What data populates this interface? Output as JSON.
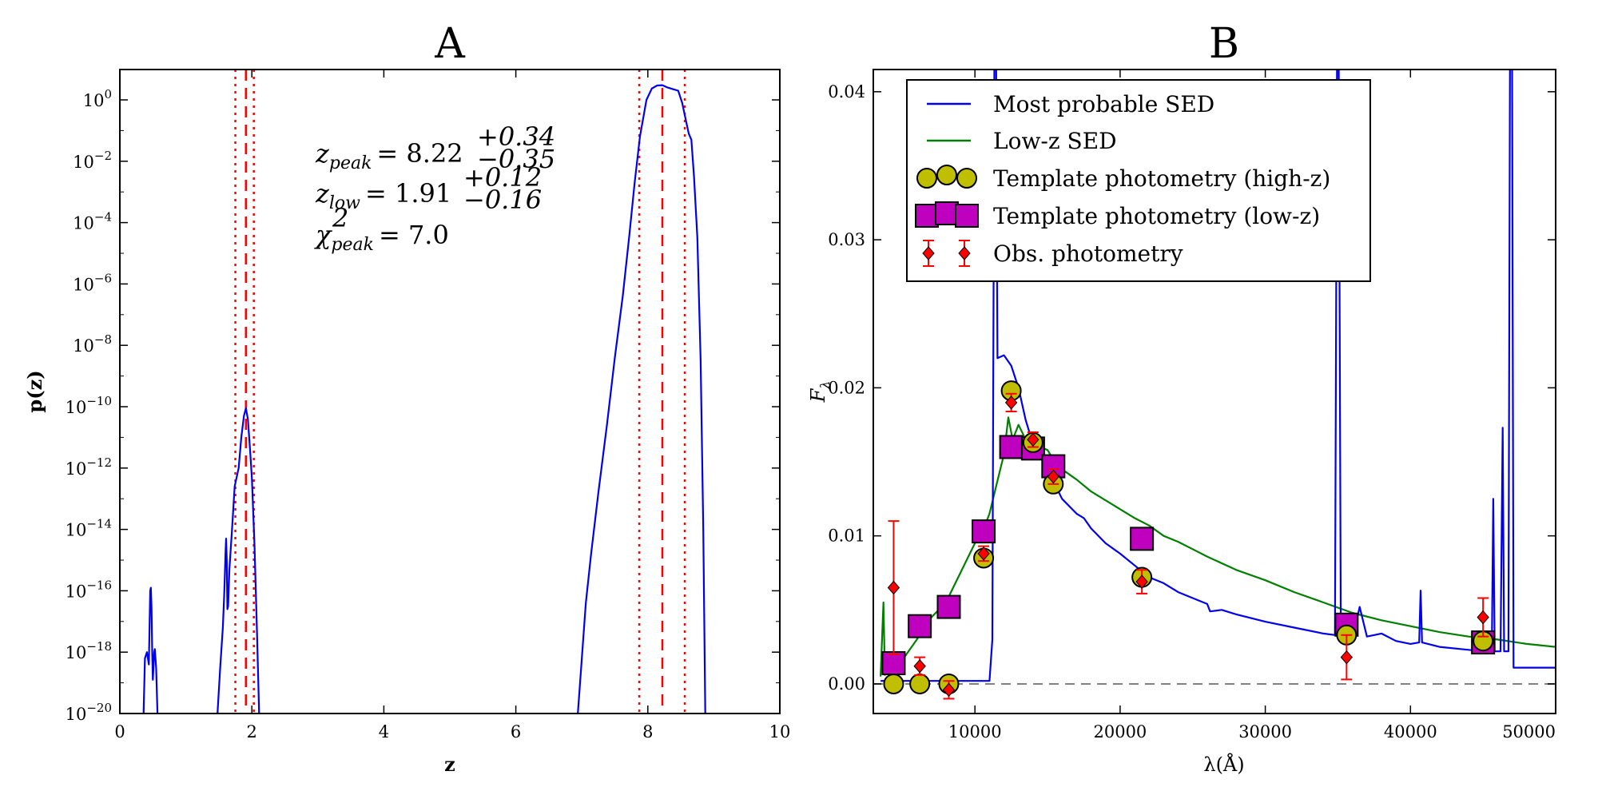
{
  "chart_data": [
    {
      "panel": "A",
      "type": "line",
      "title": "A",
      "xlabel": "z",
      "ylabel": "p(z)",
      "xlim": [
        0,
        10
      ],
      "ylim_log10": [
        -20,
        1
      ],
      "y_scale": "log",
      "x_ticks": [
        "0",
        "2",
        "4",
        "6",
        "8",
        "10"
      ],
      "y_ticks": [
        {
          "base": "10",
          "exp": "0"
        },
        {
          "base": "10",
          "exp": "−2"
        },
        {
          "base": "10",
          "exp": "−4"
        },
        {
          "base": "10",
          "exp": "−6"
        },
        {
          "base": "10",
          "exp": "−8"
        },
        {
          "base": "10",
          "exp": "−10"
        },
        {
          "base": "10",
          "exp": "−12"
        },
        {
          "base": "10",
          "exp": "−14"
        },
        {
          "base": "10",
          "exp": "−16"
        },
        {
          "base": "10",
          "exp": "−18"
        },
        {
          "base": "10",
          "exp": "−20"
        }
      ],
      "annotations": {
        "z_peak": {
          "lhs": "z",
          "sub": "peak",
          "value": "= 8.22",
          "sup": "+0.34",
          "inf": "−0.35"
        },
        "z_low": {
          "lhs": "z",
          "sub": "low",
          "value": "= 1.91",
          "sup": "+0.12",
          "inf": "−0.16"
        },
        "chi2": {
          "lhs": "χ",
          "sup": "2",
          "sub": "peak",
          "value": "= 7.0"
        }
      },
      "vlines": {
        "dashed": [
          1.91,
          8.22
        ],
        "dotted": [
          1.75,
          2.03,
          7.87,
          8.56
        ]
      },
      "series": [
        {
          "color": "#0000ee",
          "segments": [
            [
              [
                0.36,
                -20
              ],
              [
                0.38,
                -18.2
              ],
              [
                0.41,
                -18.0
              ],
              [
                0.44,
                -18.4
              ],
              [
                0.46,
                -16.0
              ],
              [
                0.47,
                -15.9
              ],
              [
                0.48,
                -16.5
              ],
              [
                0.49,
                -18.0
              ],
              [
                0.5,
                -18.9
              ],
              [
                0.52,
                -18.0
              ],
              [
                0.53,
                -17.9
              ],
              [
                0.55,
                -18.5
              ],
              [
                0.57,
                -20
              ]
            ],
            [
              [
                1.48,
                -20
              ],
              [
                1.52,
                -18.5
              ],
              [
                1.56,
                -17.2
              ],
              [
                1.58,
                -16.2
              ],
              [
                1.59,
                -15.6
              ],
              [
                1.6,
                -14.8
              ],
              [
                1.61,
                -14.3
              ],
              [
                1.62,
                -15.0
              ],
              [
                1.63,
                -16.6
              ],
              [
                1.64,
                -16.5
              ],
              [
                1.66,
                -15.3
              ],
              [
                1.7,
                -14.0
              ],
              [
                1.74,
                -12.6
              ],
              [
                1.8,
                -12.0
              ],
              [
                1.84,
                -11.0
              ],
              [
                1.88,
                -10.3
              ],
              [
                1.91,
                -10.05
              ],
              [
                1.94,
                -10.4
              ],
              [
                1.97,
                -11.3
              ],
              [
                2.0,
                -12.3
              ],
              [
                2.04,
                -14.5
              ],
              [
                2.08,
                -17.5
              ],
              [
                2.11,
                -20
              ]
            ],
            [
              [
                6.94,
                -20
              ],
              [
                7.0,
                -18.2
              ],
              [
                7.06,
                -16.4
              ],
              [
                7.14,
                -14.8
              ],
              [
                7.25,
                -12.8
              ],
              [
                7.38,
                -10.6
              ],
              [
                7.5,
                -8.4
              ],
              [
                7.62,
                -6.4
              ],
              [
                7.72,
                -4.4
              ],
              [
                7.8,
                -2.7
              ],
              [
                7.88,
                -1.2
              ],
              [
                7.98,
                0.0
              ],
              [
                8.06,
                0.37
              ],
              [
                8.14,
                0.47
              ],
              [
                8.22,
                0.48
              ],
              [
                8.3,
                0.4
              ],
              [
                8.38,
                0.35
              ],
              [
                8.46,
                0.3
              ],
              [
                8.52,
                -0.1
              ],
              [
                8.58,
                -0.7
              ],
              [
                8.62,
                -1.1
              ],
              [
                8.66,
                -1.3
              ],
              [
                8.7,
                -2.5
              ],
              [
                8.75,
                -4.5
              ],
              [
                8.8,
                -8.5
              ],
              [
                8.84,
                -14.0
              ],
              [
                8.87,
                -20
              ]
            ]
          ]
        }
      ]
    },
    {
      "panel": "B",
      "type": "line",
      "title": "B",
      "xlabel": "λ(Å)",
      "ylabel": "F",
      "ylabel_sub": "λ",
      "xlim": [
        3000,
        50000
      ],
      "ylim": [
        -0.002,
        0.0415
      ],
      "x_ticks": [
        {
          "value": 10000,
          "label": "10000"
        },
        {
          "value": 20000,
          "label": "20000"
        },
        {
          "value": 30000,
          "label": "30000"
        },
        {
          "value": 40000,
          "label": "40000"
        },
        {
          "value": 50000,
          "label": "50000"
        }
      ],
      "y_ticks": [
        {
          "value": 0.0,
          "label": "0.00"
        },
        {
          "value": 0.01,
          "label": "0.01"
        },
        {
          "value": 0.02,
          "label": "0.02"
        },
        {
          "value": 0.03,
          "label": "0.03"
        },
        {
          "value": 0.04,
          "label": "0.04"
        }
      ],
      "zero_line": 0,
      "legend": {
        "placement": "upper-left",
        "entries": [
          {
            "label": "Most probable SED",
            "kind": "line",
            "color": "#0000ee"
          },
          {
            "label": "Low-z SED",
            "kind": "line",
            "color": "#007f00"
          },
          {
            "label": "Template photometry (high-z)",
            "kind": "circle",
            "color": "#bfbf00"
          },
          {
            "label": "Template photometry (low-z)",
            "kind": "square",
            "color": "#bf00bf"
          },
          {
            "label": "Obs. photometry",
            "kind": "errorbar",
            "color": "#ff0000"
          }
        ]
      },
      "series": [
        {
          "name": "Most probable SED",
          "color": "#0000ee",
          "points": [
            [
              3500,
              0.0002
            ],
            [
              4000,
              0.0002
            ],
            [
              6000,
              0.0002
            ],
            [
              8000,
              0.0002
            ],
            [
              10000,
              0.0002
            ],
            [
              11000,
              0.0002
            ],
            [
              11200,
              0.003
            ],
            [
              11350,
              0.045
            ],
            [
              11450,
              0.045
            ],
            [
              11550,
              0.022
            ],
            [
              12000,
              0.0222
            ],
            [
              12500,
              0.0215
            ],
            [
              13000,
              0.02
            ],
            [
              13500,
              0.0178
            ],
            [
              14000,
              0.0162
            ],
            [
              14500,
              0.016
            ],
            [
              15000,
              0.0145
            ],
            [
              16000,
              0.0125
            ],
            [
              17000,
              0.0115
            ],
            [
              17500,
              0.0112
            ],
            [
              18000,
              0.0105
            ],
            [
              19000,
              0.0095
            ],
            [
              20000,
              0.0088
            ],
            [
              21000,
              0.008
            ],
            [
              22000,
              0.0072
            ],
            [
              23000,
              0.0068
            ],
            [
              24000,
              0.0062
            ],
            [
              25000,
              0.0058
            ],
            [
              26000,
              0.0054
            ],
            [
              26200,
              0.0049
            ],
            [
              27000,
              0.005
            ],
            [
              28000,
              0.0047
            ],
            [
              30000,
              0.0042
            ],
            [
              32000,
              0.0038
            ],
            [
              34000,
              0.0034
            ],
            [
              34800,
              0.0033
            ],
            [
              34950,
              0.044
            ],
            [
              35050,
              0.044
            ],
            [
              35200,
              0.0035
            ],
            [
              36000,
              0.003
            ],
            [
              36500,
              0.0052
            ],
            [
              37000,
              0.0032
            ],
            [
              38000,
              0.0034
            ],
            [
              39000,
              0.0029
            ],
            [
              40000,
              0.0027
            ],
            [
              40600,
              0.0028
            ],
            [
              40700,
              0.0063
            ],
            [
              40800,
              0.0028
            ],
            [
              42000,
              0.0025
            ],
            [
              44000,
              0.0023
            ],
            [
              45000,
              0.0022
            ],
            [
              45600,
              0.0022
            ],
            [
              45700,
              0.0125
            ],
            [
              45800,
              0.0022
            ],
            [
              46200,
              0.0022
            ],
            [
              46350,
              0.0173
            ],
            [
              46450,
              0.0022
            ],
            [
              46750,
              0.0022
            ],
            [
              46850,
              0.0415
            ],
            [
              47000,
              0.0415
            ],
            [
              47100,
              0.0011
            ],
            [
              48000,
              0.0011
            ],
            [
              50000,
              0.0011
            ]
          ]
        },
        {
          "name": "Low-z SED",
          "color": "#007f00",
          "points": [
            [
              3500,
              0.0005
            ],
            [
              3700,
              0.0055
            ],
            [
              3800,
              0.0006
            ],
            [
              4000,
              0.001
            ],
            [
              4500,
              0.0012
            ],
            [
              5000,
              0.0016
            ],
            [
              5500,
              0.0023
            ],
            [
              6000,
              0.003
            ],
            [
              6500,
              0.0038
            ],
            [
              7000,
              0.0045
            ],
            [
              7500,
              0.005
            ],
            [
              8000,
              0.0055
            ],
            [
              8500,
              0.0065
            ],
            [
              9000,
              0.0075
            ],
            [
              9500,
              0.0085
            ],
            [
              10000,
              0.0095
            ],
            [
              10500,
              0.0102
            ],
            [
              11000,
              0.0115
            ],
            [
              11500,
              0.0135
            ],
            [
              12000,
              0.0155
            ],
            [
              12300,
              0.018
            ],
            [
              12600,
              0.0165
            ],
            [
              13000,
              0.0175
            ],
            [
              13500,
              0.0165
            ],
            [
              14000,
              0.017
            ],
            [
              14500,
              0.016
            ],
            [
              15000,
              0.0158
            ],
            [
              15500,
              0.015
            ],
            [
              16000,
              0.0145
            ],
            [
              17000,
              0.0138
            ],
            [
              18000,
              0.013
            ],
            [
              19000,
              0.0124
            ],
            [
              20000,
              0.0118
            ],
            [
              21000,
              0.0112
            ],
            [
              22000,
              0.0107
            ],
            [
              23000,
              0.01
            ],
            [
              24000,
              0.0096
            ],
            [
              25000,
              0.0091
            ],
            [
              26000,
              0.0086
            ],
            [
              28000,
              0.0077
            ],
            [
              30000,
              0.007
            ],
            [
              32000,
              0.0062
            ],
            [
              34000,
              0.0055
            ],
            [
              36000,
              0.0048
            ],
            [
              38000,
              0.0043
            ],
            [
              40000,
              0.0039
            ],
            [
              42000,
              0.0035
            ],
            [
              44000,
              0.0032
            ],
            [
              46000,
              0.003
            ],
            [
              48000,
              0.0027
            ],
            [
              50000,
              0.0025
            ]
          ]
        },
        {
          "name": "Template photometry (high-z)",
          "kind": "circle",
          "color": "#bfbf00",
          "points": [
            [
              4400,
              0.0
            ],
            [
              6200,
              0.0
            ],
            [
              8200,
              0.0
            ],
            [
              10600,
              0.0085
            ],
            [
              12500,
              0.0198
            ],
            [
              14000,
              0.0163
            ],
            [
              15400,
              0.0135
            ],
            [
              21500,
              0.0072
            ],
            [
              35600,
              0.0033
            ],
            [
              45000,
              0.0029
            ]
          ]
        },
        {
          "name": "Template photometry (low-z)",
          "kind": "square",
          "color": "#bf00bf",
          "points": [
            [
              4400,
              0.0014
            ],
            [
              6200,
              0.0039
            ],
            [
              8200,
              0.0052
            ],
            [
              10600,
              0.0103
            ],
            [
              12500,
              0.016
            ],
            [
              14000,
              0.0159
            ],
            [
              15400,
              0.0147
            ],
            [
              21500,
              0.0098
            ],
            [
              35600,
              0.004
            ],
            [
              45000,
              0.0028
            ]
          ]
        },
        {
          "name": "Obs. photometry",
          "kind": "errorbar",
          "color": "#ff0000",
          "points": [
            {
              "x": 4400,
              "y": 0.0065,
              "err": 0.0045
            },
            {
              "x": 6200,
              "y": 0.0012,
              "err": 0.0006
            },
            {
              "x": 8200,
              "y": -0.0004,
              "err": 0.0006
            },
            {
              "x": 10600,
              "y": 0.0088,
              "err": 0.0005
            },
            {
              "x": 12500,
              "y": 0.019,
              "err": 0.0006
            },
            {
              "x": 14000,
              "y": 0.0165,
              "err": 0.0005
            },
            {
              "x": 15400,
              "y": 0.014,
              "err": 0.0005
            },
            {
              "x": 21500,
              "y": 0.0069,
              "err": 0.0008
            },
            {
              "x": 35600,
              "y": 0.0018,
              "err": 0.0015
            },
            {
              "x": 45000,
              "y": 0.0045,
              "err": 0.0013
            }
          ]
        }
      ]
    }
  ]
}
